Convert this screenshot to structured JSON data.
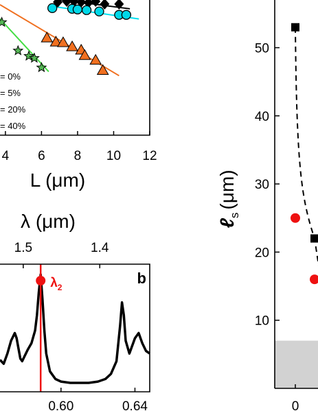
{
  "chart_data": [
    {
      "panel": "top-left",
      "type": "scatter",
      "xlabel": "L (μm)",
      "xticks": [
        "4",
        "6",
        "8",
        "10",
        "12"
      ],
      "xlim": [
        3.7,
        12
      ],
      "ylim": [
        0,
        1
      ],
      "legend_placement": "lower-left",
      "legend_entries": [
        "= 0%",
        "= 5%",
        "= 20%",
        "= 40%"
      ],
      "series": [
        {
          "marker": "diamond",
          "color": "#000000",
          "fit_color": "#000000",
          "x": [
            6.9,
            7.4,
            7.8,
            8.2,
            8.6,
            9.0,
            9.5,
            10.3
          ],
          "y": [
            0.985,
            0.99,
            0.99,
            0.985,
            0.98,
            0.99,
            0.97,
            0.97
          ],
          "fit": [
            [
              6.0,
              1.02
            ],
            [
              10.9,
              0.935
            ]
          ]
        },
        {
          "marker": "circle",
          "color": "#00d8e8",
          "fit_color": "#00e0f0",
          "x": [
            6.6,
            7.7,
            8.0,
            8.5,
            9.2,
            10.3,
            10.7
          ],
          "y": [
            0.94,
            0.935,
            0.93,
            0.925,
            0.915,
            0.89,
            0.89
          ],
          "fit": [
            [
              6.5,
              0.955
            ],
            [
              11.4,
              0.86
            ]
          ]
        },
        {
          "marker": "triangle",
          "color": "#f07020",
          "fit_color": "#f07020",
          "x": [
            6.3,
            6.8,
            7.2,
            7.7,
            8.2,
            8.4,
            9.0,
            9.4
          ],
          "y": [
            0.72,
            0.69,
            0.685,
            0.655,
            0.63,
            0.59,
            0.555,
            0.48
          ],
          "fit": [
            [
              3.7,
              0.965
            ],
            [
              10.3,
              0.44
            ]
          ]
        },
        {
          "marker": "star",
          "color": "#55b855",
          "fit_color": "#44dd44",
          "x": [
            3.8,
            4.7,
            5.3,
            5.6,
            6.0
          ],
          "y": [
            0.835,
            0.625,
            0.585,
            0.57,
            0.5
          ],
          "fit": [
            [
              3.7,
              0.86
            ],
            [
              6.4,
              0.47
            ]
          ]
        }
      ]
    },
    {
      "panel": "b",
      "type": "line",
      "panel_label": "b",
      "xticks_bottom": [
        "0.60",
        "0.64"
      ],
      "top_axis_label": "λ (μm)",
      "xticks_top": [
        "1.5",
        "1.4"
      ],
      "marker_label": "λ",
      "marker_subscript": "2",
      "marker_x": 0.589,
      "xlim": [
        0.567,
        0.648
      ],
      "marker_color": "#ee1111",
      "series": [
        {
          "name": "",
          "x": [
            0.567,
            0.569,
            0.571,
            0.573,
            0.575,
            0.576,
            0.577,
            0.578,
            0.579,
            0.58,
            0.582,
            0.584,
            0.586,
            0.587,
            0.588,
            0.589,
            0.59,
            0.591,
            0.592,
            0.594,
            0.597,
            0.6,
            0.605,
            0.61,
            0.615,
            0.62,
            0.624,
            0.627,
            0.63,
            0.632,
            0.633,
            0.634,
            0.635,
            0.637,
            0.64,
            0.642,
            0.644,
            0.646,
            0.648
          ],
          "y": [
            0.25,
            0.22,
            0.3,
            0.4,
            0.46,
            0.42,
            0.34,
            0.26,
            0.24,
            0.27,
            0.33,
            0.38,
            0.48,
            0.6,
            0.78,
            0.92,
            0.72,
            0.48,
            0.3,
            0.16,
            0.1,
            0.08,
            0.07,
            0.07,
            0.07,
            0.08,
            0.1,
            0.14,
            0.24,
            0.52,
            0.7,
            0.6,
            0.4,
            0.3,
            0.42,
            0.46,
            0.38,
            0.32,
            0.3
          ]
        }
      ]
    },
    {
      "panel": "right",
      "type": "scatter",
      "ylabel": "ℓ",
      "ylabel_subscript": "s",
      "ylabel_unit": "(μm)",
      "yticks": [
        "10",
        "20",
        "30",
        "40",
        "50"
      ],
      "ylim": [
        0,
        57
      ],
      "xticks": [
        "0"
      ],
      "xlim": [
        -1,
        1.2
      ],
      "shaded_band_y": [
        0,
        7
      ],
      "series": [
        {
          "marker": "square",
          "color": "#000000",
          "line": "dashed",
          "x": [
            0,
            0.25
          ],
          "y": [
            53,
            22
          ]
        },
        {
          "marker": "circle",
          "color": "#ee1111",
          "x": [
            0,
            0.25
          ],
          "y": [
            25,
            16
          ]
        }
      ]
    }
  ]
}
